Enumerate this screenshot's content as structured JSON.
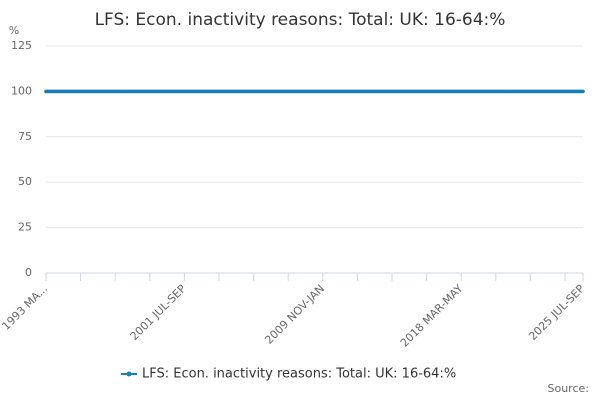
{
  "chart_data": {
    "type": "line",
    "title": "LFS: Econ. inactivity reasons: Total: UK: 16-64:%",
    "y_unit": "%",
    "source": "Source:",
    "categories": [
      "1993 MA...",
      null,
      null,
      null,
      null,
      null,
      null,
      null,
      null,
      null,
      null,
      null,
      null,
      null,
      null,
      null,
      null,
      null,
      null,
      null,
      null,
      null,
      null,
      null,
      null,
      null,
      null,
      null,
      null,
      null,
      null,
      null,
      null,
      null,
      null,
      null,
      null,
      null,
      null,
      null,
      null,
      null,
      null,
      null,
      null,
      null,
      null,
      null,
      null,
      null,
      null,
      null,
      null,
      null,
      null,
      null,
      null,
      null,
      null,
      null,
      null,
      null,
      null,
      null,
      null,
      null,
      null,
      null,
      null,
      null,
      null,
      null,
      null,
      null,
      null,
      null,
      null,
      null,
      null,
      null,
      null,
      null,
      null,
      null,
      null,
      null,
      null,
      null,
      null,
      null,
      null,
      null,
      null,
      null,
      null,
      null,
      null,
      null,
      null,
      null,
      "2001 JUL-SEP",
      null,
      null,
      null,
      null,
      null,
      null,
      null,
      null,
      null,
      null,
      null,
      null,
      null,
      null,
      null,
      null,
      null,
      null,
      null,
      null,
      null,
      null,
      null,
      null,
      null,
      null,
      null,
      null,
      null,
      null,
      null,
      null,
      null,
      null,
      null,
      null,
      null,
      null,
      null,
      null,
      null,
      null,
      null,
      null,
      null,
      null,
      null,
      null,
      null,
      null,
      null,
      null,
      null,
      null,
      null,
      null,
      null,
      null,
      null,
      null,
      null,
      null,
      null,
      null,
      null,
      null,
      null,
      null,
      null,
      null,
      null,
      null,
      null,
      null,
      null,
      null,
      null,
      null,
      null,
      null,
      null,
      null,
      null,
      null,
      null,
      null,
      null,
      null,
      null,
      null,
      null,
      null,
      null,
      null,
      null,
      null,
      null,
      null,
      null,
      "2009 NOV-JAN",
      null,
      null,
      null,
      null,
      null,
      null,
      null,
      null,
      null,
      null,
      null,
      null,
      null,
      null,
      null,
      null,
      null,
      null,
      null,
      null,
      null,
      null,
      null,
      null,
      null,
      null,
      null,
      null,
      null,
      null,
      null,
      null,
      null,
      null,
      null,
      null,
      null,
      null,
      null,
      null,
      null,
      null,
      null,
      null,
      null,
      null,
      null,
      null,
      null,
      null,
      null,
      null,
      null,
      null,
      null,
      null,
      null,
      null,
      null,
      null,
      null,
      null,
      null,
      null,
      null,
      null,
      null,
      null,
      null,
      null,
      null,
      null,
      null,
      null,
      null,
      null,
      null,
      null,
      null,
      null,
      null,
      null,
      null,
      null,
      null,
      null,
      null,
      null,
      null,
      null,
      null,
      null,
      null,
      null,
      null,
      null,
      null,
      null,
      null,
      "2018 MAR-MAY",
      null,
      null,
      null,
      null,
      null,
      null,
      null,
      null,
      null,
      null,
      null,
      null,
      null,
      null,
      null,
      null,
      null,
      null,
      null,
      null,
      null,
      null,
      null,
      null,
      null,
      null,
      null,
      null,
      null,
      null,
      null,
      null,
      null,
      null,
      null,
      null,
      null,
      null,
      null,
      null,
      null,
      null,
      null,
      null,
      null,
      null,
      null,
      null,
      null,
      null,
      null,
      null,
      null,
      null,
      null,
      null,
      null,
      null,
      null,
      null,
      null,
      null,
      null,
      null,
      null,
      null,
      null,
      null,
      null,
      null,
      null,
      null,
      null,
      null,
      null,
      null,
      null,
      null,
      null,
      null,
      null,
      null,
      null,
      null,
      null,
      null,
      null,
      "2025 JUL-SEP"
    ],
    "series": [
      {
        "name": "LFS: Econ. inactivity reasons: Total: UK: 16-64:%",
        "color": "#1a7cb8",
        "values": [
          100,
          100,
          100,
          100,
          100,
          100,
          100,
          100,
          100,
          100,
          100,
          100,
          100,
          100,
          100,
          100,
          100,
          100,
          100,
          100,
          100,
          100,
          100,
          100,
          100,
          100,
          100,
          100,
          100,
          100,
          100,
          100,
          100,
          100,
          100,
          100,
          100,
          100,
          100,
          100,
          100,
          100,
          100,
          100,
          100,
          100,
          100,
          100,
          100,
          100,
          100,
          100,
          100,
          100,
          100,
          100,
          100,
          100,
          100,
          100,
          100,
          100,
          100,
          100,
          100,
          100,
          100,
          100,
          100,
          100,
          100,
          100,
          100,
          100,
          100,
          100,
          100,
          100,
          100,
          100,
          100,
          100,
          100,
          100,
          100,
          100,
          100,
          100,
          100,
          100,
          100,
          100,
          100,
          100,
          100,
          100,
          100,
          100,
          100,
          100,
          100,
          100,
          100,
          100,
          100,
          100,
          100,
          100,
          100,
          100,
          100,
          100,
          100,
          100,
          100,
          100,
          100,
          100,
          100,
          100,
          100,
          100,
          100,
          100,
          100,
          100,
          100,
          100,
          100,
          100,
          100,
          100,
          100,
          100,
          100,
          100,
          100,
          100,
          100,
          100,
          100,
          100,
          100,
          100,
          100,
          100,
          100,
          100,
          100,
          100,
          100,
          100,
          100,
          100,
          100,
          100,
          100,
          100,
          100,
          100,
          100,
          100,
          100,
          100,
          100,
          100,
          100,
          100,
          100,
          100,
          100,
          100,
          100,
          100,
          100,
          100,
          100,
          100,
          100,
          100,
          100,
          100,
          100,
          100,
          100,
          100,
          100,
          100,
          100,
          100,
          100,
          100,
          100,
          100,
          100,
          100,
          100,
          100,
          100,
          100,
          100,
          100,
          100,
          100,
          100,
          100,
          100,
          100,
          100,
          100,
          100,
          100,
          100,
          100,
          100,
          100,
          100,
          100,
          100,
          100,
          100,
          100,
          100,
          100,
          100,
          100,
          100,
          100,
          100,
          100,
          100,
          100,
          100,
          100,
          100,
          100,
          100,
          100,
          100,
          100,
          100,
          100,
          100,
          100,
          100,
          100,
          100,
          100,
          100,
          100,
          100,
          100,
          100,
          100,
          100,
          100,
          100,
          100,
          100,
          100,
          100,
          100,
          100,
          100,
          100,
          100,
          100,
          100,
          100,
          100,
          100,
          100,
          100,
          100,
          100,
          100,
          100,
          100,
          100,
          100,
          100,
          100,
          100,
          100,
          100,
          100,
          100,
          100,
          100,
          100,
          100,
          100,
          100,
          100,
          100,
          100,
          100,
          100,
          100,
          100,
          100,
          100,
          100,
          100,
          100,
          100,
          100,
          100,
          100,
          100,
          100,
          100,
          100,
          100,
          100,
          100,
          100,
          100,
          100,
          100,
          100,
          100,
          100,
          100,
          100,
          100,
          100,
          100,
          100,
          100,
          100,
          100,
          100,
          100,
          100,
          100,
          100,
          100,
          100,
          100,
          100,
          100,
          100,
          100,
          100,
          100,
          100,
          100,
          100,
          100,
          100,
          100,
          100,
          100,
          100,
          100,
          100,
          100,
          100,
          100,
          100,
          100,
          100,
          100,
          100,
          100,
          100,
          100,
          100,
          100,
          100,
          100,
          100,
          100,
          100,
          100,
          100,
          100,
          100,
          100,
          100,
          100,
          100,
          100,
          100,
          100,
          100,
          100,
          100
        ]
      }
    ],
    "ylim": [
      0,
      125
    ],
    "yticks": [
      0,
      25,
      50,
      75,
      100,
      125
    ],
    "grid": true
  }
}
